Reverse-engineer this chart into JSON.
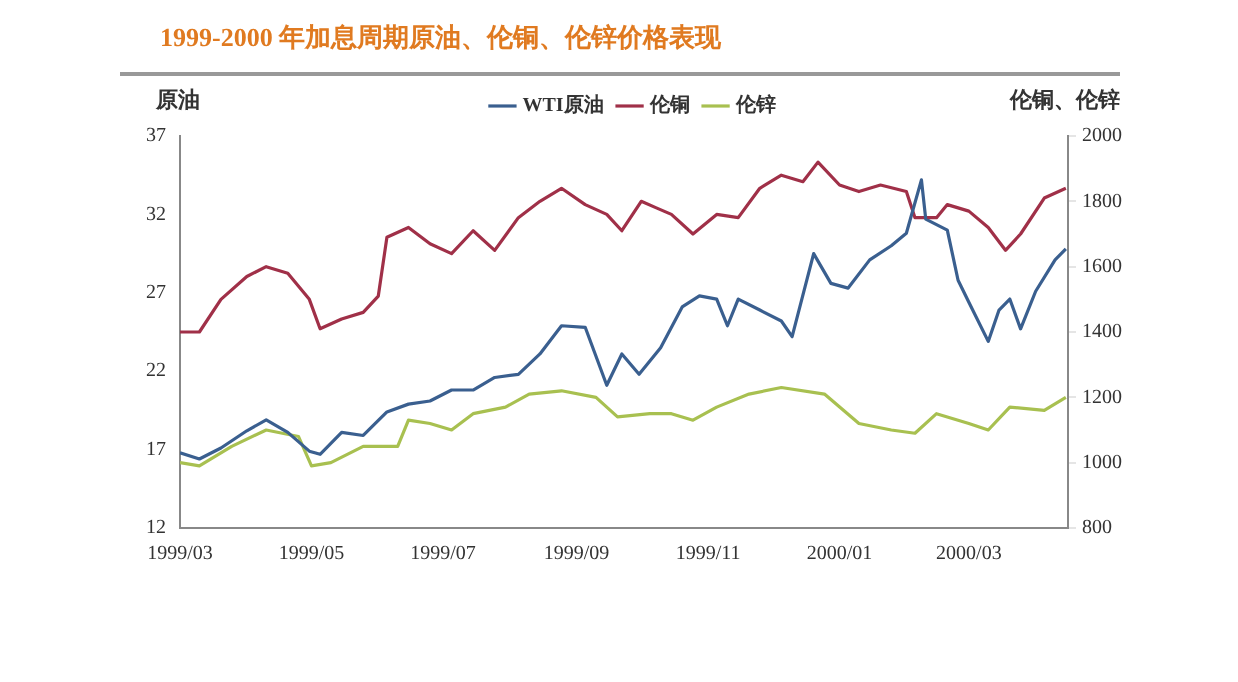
{
  "chart_data": {
    "type": "line",
    "title": "1999-2000 年加息周期原油、伦铜、伦锌价格表现",
    "ylabel": "原油",
    "y2label": "伦铜、伦锌",
    "xlim": [
      "1999-03-01",
      "2000-04-16"
    ],
    "xticks": [
      {
        "value": "1999-03-01",
        "label": "1999/03"
      },
      {
        "value": "1999-05-01",
        "label": "1999/05"
      },
      {
        "value": "1999-07-01",
        "label": "1999/07"
      },
      {
        "value": "1999-09-01",
        "label": "1999/09"
      },
      {
        "value": "1999-11-01",
        "label": "1999/11"
      },
      {
        "value": "2000-01-01",
        "label": "2000/01"
      },
      {
        "value": "2000-03-01",
        "label": "2000/03"
      }
    ],
    "ylim": [
      12,
      37
    ],
    "yticks": [
      12,
      17,
      22,
      27,
      32,
      37
    ],
    "y2lim": [
      800,
      2000
    ],
    "y2ticks": [
      800,
      1000,
      1200,
      1400,
      1600,
      1800,
      2000
    ],
    "grid": false,
    "legend": "top",
    "marker": "none",
    "line_style": "solid",
    "series": [
      {
        "name": "WTI原油",
        "color": "#3a5f8f",
        "x": [
          "1999-03-01",
          "1999-03-10",
          "1999-03-20",
          "1999-04-01",
          "1999-04-10",
          "1999-04-20",
          "1999-04-30",
          "1999-05-05",
          "1999-05-15",
          "1999-05-25",
          "1999-06-05",
          "1999-06-15",
          "1999-06-25",
          "1999-07-05",
          "1999-07-15",
          "1999-07-25",
          "1999-08-05",
          "1999-08-15",
          "1999-08-25",
          "1999-09-05",
          "1999-09-15",
          "1999-09-22",
          "1999-09-30",
          "1999-10-10",
          "1999-10-20",
          "1999-10-28",
          "1999-11-05",
          "1999-11-10",
          "1999-11-15",
          "1999-11-25",
          "1999-12-05",
          "1999-12-10",
          "1999-12-20",
          "1999-12-28",
          "2000-01-05",
          "2000-01-15",
          "2000-01-25",
          "2000-02-01",
          "2000-02-08",
          "2000-02-10",
          "2000-02-20",
          "2000-02-25",
          "2000-03-01",
          "2000-03-10",
          "2000-03-15",
          "2000-03-20",
          "2000-03-25",
          "2000-04-01",
          "2000-04-10",
          "2000-04-15"
        ],
        "values": [
          16.8,
          16.4,
          17.1,
          18.2,
          18.9,
          18.1,
          16.9,
          16.7,
          18.1,
          17.9,
          19.4,
          19.9,
          20.1,
          20.8,
          20.8,
          21.6,
          21.8,
          23.1,
          24.9,
          24.8,
          21.1,
          23.1,
          21.8,
          23.5,
          26.1,
          26.8,
          26.6,
          24.9,
          26.6,
          25.9,
          25.2,
          24.2,
          29.5,
          27.6,
          27.3,
          29.1,
          30.0,
          30.8,
          34.2,
          31.7,
          31.0,
          27.8,
          26.4,
          23.9,
          25.9,
          26.6,
          24.7,
          27.1,
          29.1,
          29.8
        ]
      },
      {
        "name": "伦铜",
        "color": "#a03048",
        "axis": "y2",
        "x": [
          "1999-03-01",
          "1999-03-10",
          "1999-03-20",
          "1999-04-01",
          "1999-04-10",
          "1999-04-20",
          "1999-04-30",
          "1999-05-05",
          "1999-05-15",
          "1999-05-25",
          "1999-06-01",
          "1999-06-05",
          "1999-06-15",
          "1999-06-25",
          "1999-07-05",
          "1999-07-15",
          "1999-07-25",
          "1999-08-05",
          "1999-08-15",
          "1999-08-25",
          "1999-09-05",
          "1999-09-15",
          "1999-09-22",
          "1999-10-01",
          "1999-10-08",
          "1999-10-15",
          "1999-10-25",
          "1999-11-05",
          "1999-11-15",
          "1999-11-25",
          "1999-12-05",
          "1999-12-15",
          "1999-12-22",
          "2000-01-01",
          "2000-01-10",
          "2000-01-20",
          "2000-02-01",
          "2000-02-05",
          "2000-02-15",
          "2000-02-20",
          "2000-03-01",
          "2000-03-10",
          "2000-03-18",
          "2000-03-25",
          "2000-04-05",
          "2000-04-15"
        ],
        "values": [
          1400,
          1400,
          1500,
          1570,
          1600,
          1580,
          1500,
          1410,
          1440,
          1460,
          1510,
          1690,
          1720,
          1670,
          1640,
          1710,
          1650,
          1750,
          1800,
          1840,
          1790,
          1760,
          1710,
          1800,
          1780,
          1760,
          1700,
          1760,
          1750,
          1840,
          1880,
          1860,
          1920,
          1850,
          1830,
          1850,
          1830,
          1750,
          1750,
          1790,
          1770,
          1720,
          1650,
          1700,
          1810,
          1840
        ]
      },
      {
        "name": "伦锌",
        "color": "#a8c050",
        "axis": "y2",
        "x": [
          "1999-03-01",
          "1999-03-10",
          "1999-03-25",
          "1999-04-10",
          "1999-04-25",
          "1999-05-01",
          "1999-05-10",
          "1999-05-25",
          "1999-06-10",
          "1999-06-15",
          "1999-06-25",
          "1999-07-05",
          "1999-07-15",
          "1999-07-30",
          "1999-08-10",
          "1999-08-25",
          "1999-09-10",
          "1999-09-20",
          "1999-10-05",
          "1999-10-15",
          "1999-10-25",
          "1999-11-05",
          "1999-11-20",
          "1999-12-05",
          "1999-12-25",
          "2000-01-10",
          "2000-01-25",
          "2000-02-05",
          "2000-02-15",
          "2000-03-01",
          "2000-03-10",
          "2000-03-20",
          "2000-04-05",
          "2000-04-15"
        ],
        "values": [
          1000,
          990,
          1050,
          1100,
          1080,
          990,
          1000,
          1050,
          1050,
          1130,
          1120,
          1100,
          1150,
          1170,
          1210,
          1220,
          1200,
          1140,
          1150,
          1150,
          1130,
          1170,
          1210,
          1230,
          1210,
          1120,
          1100,
          1090,
          1150,
          1120,
          1100,
          1170,
          1160,
          1200
        ]
      }
    ]
  }
}
